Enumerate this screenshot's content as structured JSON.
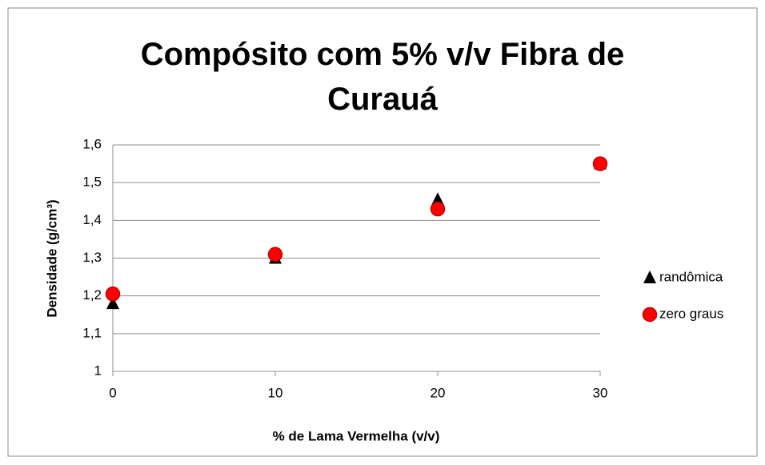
{
  "chart_data": {
    "type": "scatter",
    "title": "Compósito com 5% v/v Fibra de Curauá",
    "xlabel": "% de Lama Vermelha (v/v)",
    "ylabel": "Densidade (g/cm³)",
    "xlim": [
      0,
      30
    ],
    "xticks": [
      0,
      10,
      20,
      30
    ],
    "ylim": [
      1,
      1.6
    ],
    "yticks": [
      1,
      {
        "value": 1.1,
        "label": "1,1"
      },
      {
        "value": 1.2,
        "label": "1,2"
      },
      {
        "value": 1.3,
        "label": "1,3"
      },
      {
        "value": 1.4,
        "label": "1,4"
      },
      {
        "value": 1.5,
        "label": "1,5"
      },
      {
        "value": 1.6,
        "label": "1,6"
      }
    ],
    "grid": true,
    "legend": "right",
    "series": [
      {
        "name": "randômica",
        "color": "#000000",
        "marker": "triangle",
        "x": [
          0,
          10,
          20,
          30
        ],
        "values": [
          1.18,
          1.3,
          1.455,
          1.55
        ]
      },
      {
        "name": "zero graus",
        "color": "#ff0000",
        "marker": "circle",
        "x": [
          0,
          10,
          20,
          30
        ],
        "values": [
          1.205,
          1.31,
          1.43,
          1.55
        ]
      }
    ]
  }
}
